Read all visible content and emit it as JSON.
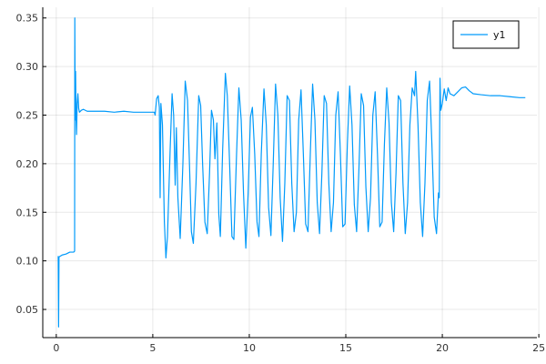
{
  "chart_data": {
    "type": "line",
    "title": "",
    "xlabel": "",
    "ylabel": "",
    "xlim": [
      -0.7,
      24.9
    ],
    "ylim": [
      0.021,
      0.361
    ],
    "x_ticks": [
      0,
      5,
      10,
      15,
      20,
      25
    ],
    "x_tick_labels": [
      "0",
      "5",
      "10",
      "15",
      "20",
      "25"
    ],
    "y_ticks": [
      0.05,
      0.1,
      0.15,
      0.2,
      0.25,
      0.3,
      0.35
    ],
    "y_tick_labels": [
      "0.05",
      "0.10",
      "0.15",
      "0.20",
      "0.25",
      "0.30",
      "0.35"
    ],
    "grid": true,
    "legend": "top-right",
    "series": [
      {
        "name": "y1",
        "color": "#009AFA",
        "points": [
          [
            0.1,
            0.105
          ],
          [
            0.12,
            0.032
          ],
          [
            0.14,
            0.104
          ],
          [
            0.3,
            0.106
          ],
          [
            0.5,
            0.107
          ],
          [
            0.7,
            0.109
          ],
          [
            0.9,
            0.109
          ],
          [
            0.95,
            0.11
          ],
          [
            0.96,
            0.35
          ],
          [
            0.98,
            0.245
          ],
          [
            1.0,
            0.295
          ],
          [
            1.02,
            0.255
          ],
          [
            1.05,
            0.23
          ],
          [
            1.08,
            0.262
          ],
          [
            1.12,
            0.272
          ],
          [
            1.16,
            0.257
          ],
          [
            1.2,
            0.253
          ],
          [
            1.3,
            0.255
          ],
          [
            1.4,
            0.256
          ],
          [
            1.6,
            0.254
          ],
          [
            2.0,
            0.254
          ],
          [
            2.5,
            0.254
          ],
          [
            3.0,
            0.253
          ],
          [
            3.5,
            0.254
          ],
          [
            4.0,
            0.253
          ],
          [
            4.5,
            0.253
          ],
          [
            5.0,
            0.253
          ],
          [
            5.08,
            0.253
          ],
          [
            5.12,
            0.25
          ],
          [
            5.2,
            0.267
          ],
          [
            5.28,
            0.27
          ],
          [
            5.34,
            0.258
          ],
          [
            5.38,
            0.165
          ],
          [
            5.42,
            0.262
          ],
          [
            5.5,
            0.24
          ],
          [
            5.6,
            0.14
          ],
          [
            5.68,
            0.103
          ],
          [
            5.76,
            0.125
          ],
          [
            5.9,
            0.215
          ],
          [
            6.0,
            0.272
          ],
          [
            6.08,
            0.25
          ],
          [
            6.16,
            0.178
          ],
          [
            6.22,
            0.237
          ],
          [
            6.3,
            0.165
          ],
          [
            6.42,
            0.123
          ],
          [
            6.56,
            0.2
          ],
          [
            6.68,
            0.285
          ],
          [
            6.8,
            0.265
          ],
          [
            6.9,
            0.2
          ],
          [
            7.0,
            0.13
          ],
          [
            7.1,
            0.118
          ],
          [
            7.24,
            0.18
          ],
          [
            7.38,
            0.27
          ],
          [
            7.48,
            0.26
          ],
          [
            7.58,
            0.2
          ],
          [
            7.7,
            0.14
          ],
          [
            7.82,
            0.128
          ],
          [
            7.94,
            0.19
          ],
          [
            8.04,
            0.255
          ],
          [
            8.14,
            0.245
          ],
          [
            8.22,
            0.205
          ],
          [
            8.32,
            0.242
          ],
          [
            8.42,
            0.148
          ],
          [
            8.5,
            0.125
          ],
          [
            8.62,
            0.215
          ],
          [
            8.76,
            0.293
          ],
          [
            8.86,
            0.27
          ],
          [
            8.98,
            0.2
          ],
          [
            9.1,
            0.125
          ],
          [
            9.2,
            0.122
          ],
          [
            9.34,
            0.21
          ],
          [
            9.46,
            0.278
          ],
          [
            9.58,
            0.245
          ],
          [
            9.7,
            0.17
          ],
          [
            9.82,
            0.113
          ],
          [
            9.94,
            0.17
          ],
          [
            10.06,
            0.248
          ],
          [
            10.16,
            0.258
          ],
          [
            10.28,
            0.21
          ],
          [
            10.4,
            0.14
          ],
          [
            10.5,
            0.125
          ],
          [
            10.62,
            0.21
          ],
          [
            10.76,
            0.277
          ],
          [
            10.88,
            0.24
          ],
          [
            11.0,
            0.155
          ],
          [
            11.12,
            0.126
          ],
          [
            11.24,
            0.2
          ],
          [
            11.36,
            0.282
          ],
          [
            11.48,
            0.25
          ],
          [
            11.6,
            0.165
          ],
          [
            11.72,
            0.12
          ],
          [
            11.84,
            0.18
          ],
          [
            11.96,
            0.27
          ],
          [
            12.08,
            0.265
          ],
          [
            12.2,
            0.18
          ],
          [
            12.32,
            0.13
          ],
          [
            12.44,
            0.15
          ],
          [
            12.56,
            0.245
          ],
          [
            12.68,
            0.276
          ],
          [
            12.8,
            0.21
          ],
          [
            12.92,
            0.138
          ],
          [
            13.04,
            0.13
          ],
          [
            13.16,
            0.21
          ],
          [
            13.28,
            0.282
          ],
          [
            13.4,
            0.245
          ],
          [
            13.52,
            0.16
          ],
          [
            13.64,
            0.128
          ],
          [
            13.76,
            0.19
          ],
          [
            13.88,
            0.27
          ],
          [
            14.0,
            0.262
          ],
          [
            14.12,
            0.18
          ],
          [
            14.24,
            0.13
          ],
          [
            14.36,
            0.16
          ],
          [
            14.48,
            0.25
          ],
          [
            14.6,
            0.274
          ],
          [
            14.72,
            0.21
          ],
          [
            14.84,
            0.135
          ],
          [
            14.96,
            0.138
          ],
          [
            15.08,
            0.22
          ],
          [
            15.2,
            0.28
          ],
          [
            15.32,
            0.24
          ],
          [
            15.44,
            0.158
          ],
          [
            15.56,
            0.13
          ],
          [
            15.68,
            0.195
          ],
          [
            15.8,
            0.272
          ],
          [
            15.92,
            0.26
          ],
          [
            16.04,
            0.176
          ],
          [
            16.16,
            0.13
          ],
          [
            16.28,
            0.165
          ],
          [
            16.4,
            0.25
          ],
          [
            16.52,
            0.274
          ],
          [
            16.64,
            0.21
          ],
          [
            16.76,
            0.135
          ],
          [
            16.88,
            0.14
          ],
          [
            17.0,
            0.22
          ],
          [
            17.12,
            0.278
          ],
          [
            17.24,
            0.242
          ],
          [
            17.36,
            0.16
          ],
          [
            17.48,
            0.13
          ],
          [
            17.6,
            0.19
          ],
          [
            17.72,
            0.27
          ],
          [
            17.84,
            0.265
          ],
          [
            17.96,
            0.18
          ],
          [
            18.08,
            0.128
          ],
          [
            18.2,
            0.16
          ],
          [
            18.32,
            0.24
          ],
          [
            18.44,
            0.278
          ],
          [
            18.56,
            0.27
          ],
          [
            18.62,
            0.295
          ],
          [
            18.74,
            0.24
          ],
          [
            18.86,
            0.16
          ],
          [
            18.98,
            0.125
          ],
          [
            19.1,
            0.18
          ],
          [
            19.22,
            0.265
          ],
          [
            19.34,
            0.285
          ],
          [
            19.46,
            0.22
          ],
          [
            19.58,
            0.145
          ],
          [
            19.7,
            0.128
          ],
          [
            19.8,
            0.17
          ],
          [
            19.84,
            0.165
          ],
          [
            19.88,
            0.288
          ],
          [
            19.92,
            0.255
          ],
          [
            20.0,
            0.262
          ],
          [
            20.1,
            0.277
          ],
          [
            20.2,
            0.265
          ],
          [
            20.3,
            0.278
          ],
          [
            20.4,
            0.272
          ],
          [
            20.6,
            0.27
          ],
          [
            20.8,
            0.274
          ],
          [
            21.0,
            0.278
          ],
          [
            21.2,
            0.279
          ],
          [
            21.4,
            0.275
          ],
          [
            21.6,
            0.272
          ],
          [
            22.0,
            0.271
          ],
          [
            22.5,
            0.27
          ],
          [
            23.0,
            0.27
          ],
          [
            23.5,
            0.269
          ],
          [
            24.0,
            0.268
          ],
          [
            24.3,
            0.268
          ]
        ]
      }
    ]
  }
}
